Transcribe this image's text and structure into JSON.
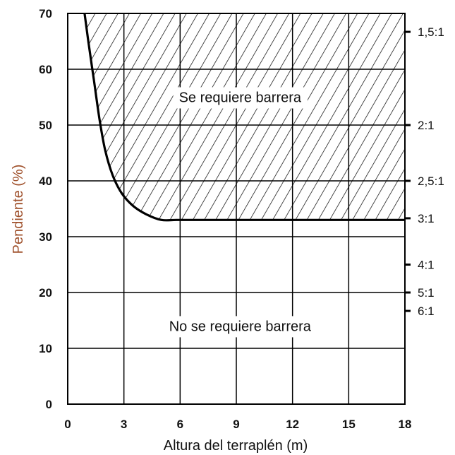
{
  "chart_data": {
    "type": "line",
    "title": "",
    "xlabel": "Altura del terraplén (m)",
    "ylabel": "Pendiente (%)",
    "xlim": [
      0,
      18
    ],
    "ylim": [
      0,
      70
    ],
    "x_ticks": [
      "0",
      "3",
      "6",
      "9",
      "12",
      "15",
      "18"
    ],
    "y_ticks": [
      "0",
      "10",
      "20",
      "30",
      "40",
      "50",
      "60",
      "70"
    ],
    "secondary_y_ticks": [
      {
        "label": "1,5:1",
        "value": 66.7
      },
      {
        "label": "2:1",
        "value": 50
      },
      {
        "label": "2,5:1",
        "value": 40
      },
      {
        "label": "3:1",
        "value": 33.3
      },
      {
        "label": "4:1",
        "value": 25
      },
      {
        "label": "5:1",
        "value": 20
      },
      {
        "label": "6:1",
        "value": 16.7
      }
    ],
    "grid": true,
    "series": [
      {
        "x": [
          0.9,
          1.1,
          1.4,
          1.7,
          2.0,
          2.4,
          2.9,
          3.5,
          4.2,
          5.0,
          5.8,
          7.0,
          9.0,
          12.0,
          15.0,
          18.0
        ],
        "y": [
          70,
          65,
          58,
          51,
          45.5,
          41,
          37.7,
          35.5,
          34,
          33,
          33,
          33,
          33,
          33,
          33,
          33
        ],
        "color": "#000000"
      }
    ],
    "annotations": [
      {
        "text": "Se requiere barrera",
        "x": 9.2,
        "y": 55
      },
      {
        "text": "No se requiere barrera",
        "x": 9.2,
        "y": 14
      }
    ],
    "colors": {
      "ylabel": "#a0522d",
      "line": "#000000",
      "grid": "#000000"
    }
  }
}
